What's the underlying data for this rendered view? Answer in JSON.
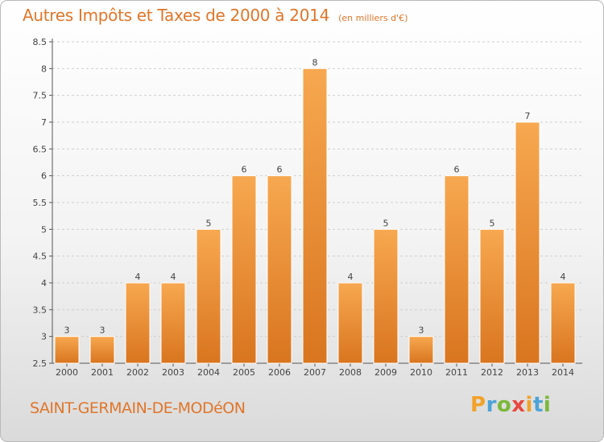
{
  "title": "Autres Impôts et Taxes de 2000 à 2014",
  "unit": "(en milliers d'€)",
  "place": "SAINT-GERMAIN-DE-MODéON",
  "brand": {
    "text": "Proxiti",
    "letter_colors": [
      "#f2a229",
      "#4da3d6",
      "#7cb83a",
      "#e8483f",
      "#f2a229",
      "#4da3d6",
      "#7cb83a"
    ]
  },
  "colors": {
    "accent": "#e0762a",
    "bar_top": "#f7a850",
    "bar_bottom": "#d9751f",
    "grid": "#cfcfcf"
  },
  "chart_data": {
    "type": "bar",
    "categories": [
      "2000",
      "2001",
      "2002",
      "2003",
      "2004",
      "2005",
      "2006",
      "2007",
      "2008",
      "2009",
      "2010",
      "2011",
      "2012",
      "2013",
      "2014"
    ],
    "values": [
      3,
      3,
      4,
      4,
      5,
      6,
      6,
      8,
      4,
      5,
      3,
      6,
      5,
      7,
      4
    ],
    "data_labels": [
      "3",
      "3",
      "4",
      "4",
      "5",
      "6",
      "6",
      "8",
      "4",
      "5",
      "3",
      "6",
      "5",
      "7",
      "4"
    ],
    "y_ticks": [
      "2.5",
      "3",
      "3.5",
      "4",
      "4.5",
      "5",
      "5.5",
      "6",
      "6.5",
      "7",
      "7.5",
      "8",
      "8.5"
    ],
    "ylim": [
      2.5,
      8.5
    ],
    "grid": "horizontal dashed",
    "legend": "none"
  }
}
